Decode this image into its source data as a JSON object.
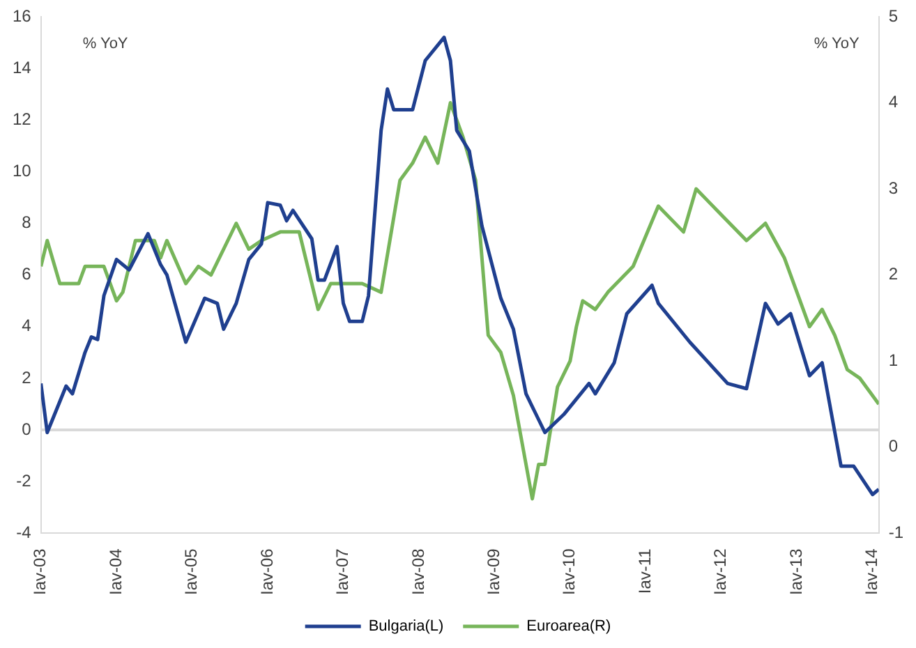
{
  "chart_data": {
    "type": "line",
    "ylabel": "% YoY",
    "y2label": "% YoY",
    "xlim": [
      "2003-01",
      "2014-02"
    ],
    "xticks": [
      {
        "value": "2003-01",
        "label": "Iav-03"
      },
      {
        "value": "2004-01",
        "label": "Iav-04"
      },
      {
        "value": "2005-01",
        "label": "Iav-05"
      },
      {
        "value": "2006-01",
        "label": "Iav-06"
      },
      {
        "value": "2007-01",
        "label": "Iav-07"
      },
      {
        "value": "2008-01",
        "label": "Iav-08"
      },
      {
        "value": "2009-01",
        "label": "Iav-09"
      },
      {
        "value": "2010-01",
        "label": "Iav-10"
      },
      {
        "value": "2011-01",
        "label": "Iav-11"
      },
      {
        "value": "2012-01",
        "label": "Iav-12"
      },
      {
        "value": "2013-01",
        "label": "Iav-13"
      },
      {
        "value": "2014-01",
        "label": "Iav-14"
      }
    ],
    "ylim": [
      -4,
      16
    ],
    "yticks": [
      -4,
      -2,
      0,
      2,
      4,
      6,
      8,
      10,
      12,
      14,
      16
    ],
    "y2lim": [
      -1,
      5
    ],
    "y2ticks": [
      -1,
      0,
      1,
      2,
      3,
      4,
      5
    ],
    "grid": false,
    "legend": "bottom",
    "marker": "none",
    "line_style": "solid",
    "ref_lines": [
      {
        "axis": "y",
        "value": 0,
        "color": "#d9d9d9"
      }
    ],
    "series": [
      {
        "name": "Bulgaria(L)",
        "color": "#1f3f8f",
        "x": [
          "2003-01",
          "2003-02",
          "2003-05",
          "2003-06",
          "2003-08",
          "2003-09",
          "2003-10",
          "2003-11",
          "2004-01",
          "2004-03",
          "2004-06",
          "2004-08",
          "2004-09",
          "2004-12",
          "2005-03",
          "2005-05",
          "2005-06",
          "2005-08",
          "2005-10",
          "2005-12",
          "2006-01",
          "2006-03",
          "2006-04",
          "2006-05",
          "2006-08",
          "2006-09",
          "2006-10",
          "2006-12",
          "2007-01",
          "2007-02",
          "2007-04",
          "2007-05",
          "2007-07",
          "2007-08",
          "2007-09",
          "2007-12",
          "2008-02",
          "2008-05",
          "2008-06",
          "2008-07",
          "2008-09",
          "2008-11",
          "2009-02",
          "2009-04",
          "2009-06",
          "2009-09",
          "2009-12",
          "2010-04",
          "2010-05",
          "2010-08",
          "2010-10",
          "2011-02",
          "2011-03",
          "2011-08",
          "2012-02",
          "2012-05",
          "2012-08",
          "2012-10",
          "2012-12",
          "2013-03",
          "2013-05",
          "2013-08",
          "2013-10",
          "2014-01",
          "2014-02"
        ],
        "values": [
          1.8,
          -0.1,
          1.7,
          1.4,
          3.0,
          3.6,
          3.5,
          5.2,
          6.6,
          6.2,
          7.6,
          6.4,
          6.0,
          3.4,
          5.1,
          4.9,
          3.9,
          4.9,
          6.6,
          7.2,
          8.8,
          8.7,
          8.1,
          8.5,
          7.4,
          5.8,
          5.8,
          7.1,
          4.9,
          4.2,
          4.2,
          5.2,
          11.6,
          13.2,
          12.4,
          12.4,
          14.3,
          15.2,
          14.3,
          11.6,
          10.8,
          7.9,
          5.1,
          3.9,
          1.4,
          -0.1,
          0.6,
          1.8,
          1.4,
          2.6,
          4.5,
          5.6,
          4.9,
          3.4,
          1.8,
          1.6,
          4.9,
          4.1,
          4.5,
          2.1,
          2.6,
          -1.4,
          -1.4,
          -2.5,
          -2.3
        ]
      },
      {
        "name": "Euroarea(R)",
        "color": "#77b55a",
        "axis": "y2",
        "x": [
          "2003-01",
          "2003-02",
          "2003-04",
          "2003-07",
          "2003-08",
          "2003-11",
          "2004-01",
          "2004-02",
          "2004-04",
          "2004-07",
          "2004-08",
          "2004-09",
          "2004-12",
          "2005-02",
          "2005-04",
          "2005-08",
          "2005-10",
          "2005-12",
          "2006-03",
          "2006-06",
          "2006-09",
          "2006-11",
          "2007-01",
          "2007-04",
          "2007-07",
          "2007-10",
          "2007-12",
          "2008-02",
          "2008-04",
          "2008-06",
          "2008-08",
          "2008-10",
          "2008-12",
          "2009-02",
          "2009-04",
          "2009-07",
          "2009-08",
          "2009-09",
          "2009-11",
          "2010-01",
          "2010-02",
          "2010-03",
          "2010-05",
          "2010-07",
          "2010-11",
          "2011-03",
          "2011-07",
          "2011-09",
          "2012-01",
          "2012-05",
          "2012-08",
          "2012-11",
          "2013-03",
          "2013-05",
          "2013-07",
          "2013-09",
          "2013-11",
          "2014-02"
        ],
        "values": [
          2.1,
          2.4,
          1.9,
          1.9,
          2.1,
          2.1,
          1.7,
          1.8,
          2.4,
          2.4,
          2.2,
          2.4,
          1.9,
          2.1,
          2.0,
          2.6,
          2.3,
          2.4,
          2.5,
          2.5,
          1.6,
          1.9,
          1.9,
          1.9,
          1.8,
          3.1,
          3.3,
          3.6,
          3.3,
          4.0,
          3.6,
          3.1,
          1.3,
          1.1,
          0.6,
          -0.6,
          -0.2,
          -0.2,
          0.7,
          1.0,
          1.4,
          1.7,
          1.6,
          1.8,
          2.1,
          2.8,
          2.5,
          3.0,
          2.7,
          2.4,
          2.6,
          2.2,
          1.4,
          1.6,
          1.3,
          0.9,
          0.8,
          0.5
        ]
      }
    ]
  }
}
